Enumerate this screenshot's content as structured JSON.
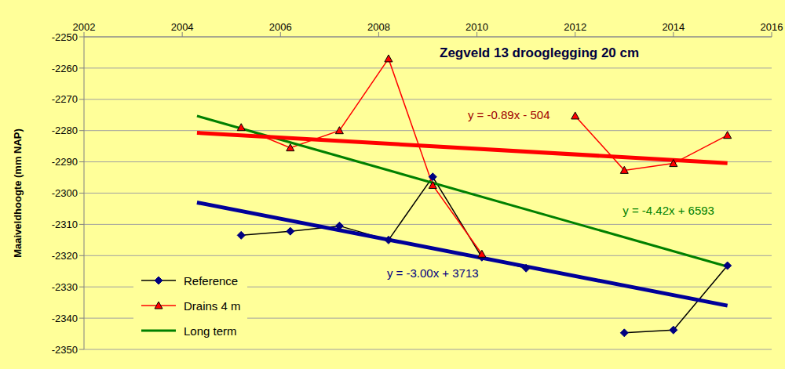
{
  "chart_data": {
    "type": "line",
    "title": "Zegveld 13  drooglegging 20 cm",
    "y_label": "Maaiveldhoogte  (mm NAP)",
    "xlim": [
      2002,
      2016
    ],
    "xticks": [
      2002,
      2004,
      2006,
      2008,
      2010,
      2012,
      2014,
      2016
    ],
    "ylim": [
      -2350,
      -2250
    ],
    "yticks": [
      -2350,
      -2340,
      -2330,
      -2320,
      -2310,
      -2300,
      -2290,
      -2280,
      -2270,
      -2260,
      -2250
    ],
    "grid": true,
    "legend": "lower left",
    "series": [
      {
        "name": "Reference",
        "color": "#000080",
        "marker": "diamond",
        "x": [
          2005.2,
          2006.2,
          2007.2,
          2008.2,
          2009.1,
          2010.1,
          2011.0,
          2012.0,
          2013.0,
          2014.0,
          2015.1
        ],
        "values": [
          -2313.5,
          -2312.2,
          -2310.5,
          -2315,
          -2294.8,
          -2320.5,
          -2324,
          null,
          -2344.7,
          -2343.8,
          -2323.2
        ]
      },
      {
        "name": "Drains 4 m",
        "color": "#FF0000",
        "marker": "triangle",
        "x": [
          2005.2,
          2006.2,
          2007.2,
          2008.2,
          2009.1,
          2010.1,
          2011.0,
          2012.0,
          2013.0,
          2014.0,
          2015.1
        ],
        "values": [
          -2279,
          -2285.5,
          -2280,
          -2257,
          -2297.5,
          -2319.5,
          null,
          -2275.3,
          -2292.7,
          -2290.5,
          -2281.5
        ]
      },
      {
        "name": "Long term",
        "color": "#008000",
        "marker": "none",
        "x": [
          2004.3,
          2015.1
        ],
        "values": [
          -2275.3,
          -2323.5
        ]
      },
      {
        "color": "#FF0000",
        "marker": "none",
        "x": [
          2004.3,
          2015.1
        ],
        "values": [
          -2280.7,
          -2290.4
        ]
      },
      {
        "color": "#000099",
        "marker": "none",
        "x": [
          2004.3,
          2015.1
        ],
        "values": [
          -2303,
          -2336
        ]
      }
    ],
    "annotations": [
      {
        "text": "y = -0.89x - 504",
        "x": 2010.65,
        "y": -2275,
        "color": "#A00000"
      },
      {
        "text": "y = -4.42x + 6593",
        "x": 2013.9,
        "y": -2305.5,
        "color": "#008000"
      },
      {
        "text": "y = -3.00x + 3713",
        "x": 2009.1,
        "y": -2325.6,
        "color": "#000080"
      }
    ]
  }
}
